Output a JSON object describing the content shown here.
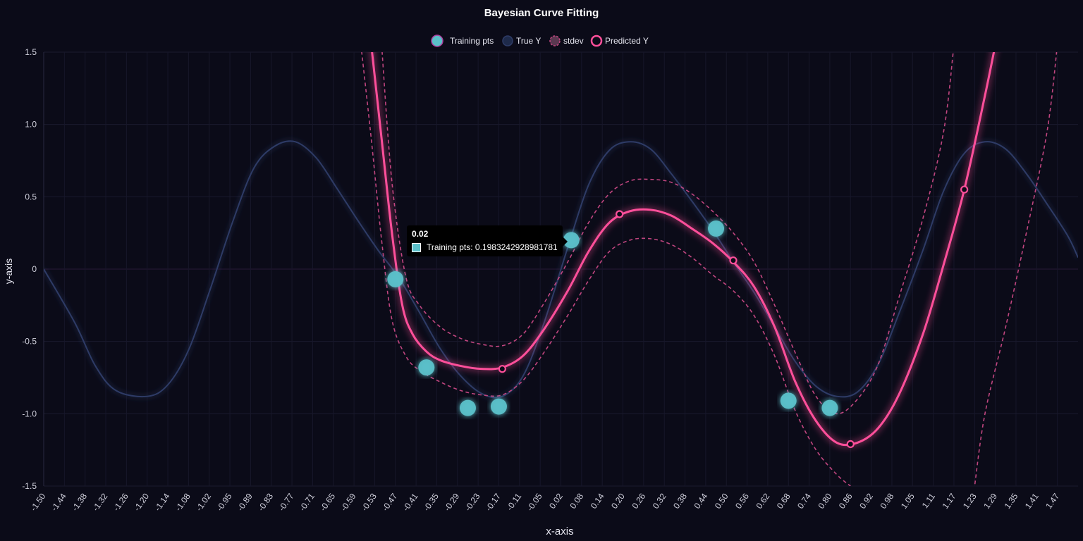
{
  "chart_data": {
    "type": "line",
    "title": "Bayesian Curve Fitting",
    "xlabel": "x-axis",
    "ylabel": "y-axis",
    "xlim": [
      -1.5,
      1.5
    ],
    "ylim": [
      -1.5,
      1.5
    ],
    "grid": true,
    "legend_position": "top-center",
    "x_ticks": [
      "-1.50",
      "-1.44",
      "-1.38",
      "-1.32",
      "-1.26",
      "-1.20",
      "-1.14",
      "-1.08",
      "-1.02",
      "-0.95",
      "-0.89",
      "-0.83",
      "-0.77",
      "-0.71",
      "-0.65",
      "-0.59",
      "-0.53",
      "-0.47",
      "-0.41",
      "-0.35",
      "-0.29",
      "-0.23",
      "-0.17",
      "-0.11",
      "-0.05",
      "0.02",
      "0.08",
      "0.14",
      "0.20",
      "0.26",
      "0.32",
      "0.38",
      "0.44",
      "0.50",
      "0.56",
      "0.62",
      "0.68",
      "0.74",
      "0.80",
      "0.86",
      "0.92",
      "0.98",
      "1.05",
      "1.11",
      "1.17",
      "1.23",
      "1.29",
      "1.35",
      "1.41",
      "1.47"
    ],
    "y_ticks": [
      {
        "value": 1.5,
        "label": "1.5"
      },
      {
        "value": 1.0,
        "label": "1.0"
      },
      {
        "value": 0.5,
        "label": "0.5"
      },
      {
        "value": 0,
        "label": "0"
      },
      {
        "value": -0.5,
        "label": "-0.5"
      },
      {
        "value": -1.0,
        "label": "-1.0"
      },
      {
        "value": -1.5,
        "label": "-1.5"
      }
    ],
    "legend": [
      {
        "label": "Training pts",
        "type": "training"
      },
      {
        "label": "True Y",
        "type": "true"
      },
      {
        "label": "stdev",
        "type": "stdev"
      },
      {
        "label": "Predicted Y",
        "type": "predicted"
      }
    ],
    "series": [
      {
        "name": "Training pts",
        "kind": "scatter",
        "color": "#5bc0c9",
        "points": [
          [
            -0.48,
            -0.07
          ],
          [
            -0.39,
            -0.68
          ],
          [
            -0.27,
            -0.96
          ],
          [
            -0.18,
            -0.95
          ],
          [
            0.03,
            0.2
          ],
          [
            0.45,
            0.28
          ],
          [
            0.66,
            -0.91
          ],
          [
            0.78,
            -0.96
          ]
        ]
      },
      {
        "name": "True Y",
        "kind": "line",
        "color": "#2e3b66",
        "points": [
          [
            -1.5,
            0
          ],
          [
            -1.41,
            -0.37
          ],
          [
            -1.35,
            -0.67
          ],
          [
            -1.29,
            -0.84
          ],
          [
            -1.2,
            -0.88
          ],
          [
            -1.14,
            -0.8
          ],
          [
            -1.08,
            -0.56
          ],
          [
            -1.02,
            -0.16
          ],
          [
            -0.95,
            0.34
          ],
          [
            -0.89,
            0.7
          ],
          [
            -0.83,
            0.85
          ],
          [
            -0.77,
            0.88
          ],
          [
            -0.71,
            0.77
          ],
          [
            -0.65,
            0.56
          ],
          [
            -0.59,
            0.34
          ],
          [
            -0.53,
            0.13
          ],
          [
            -0.47,
            -0.06
          ],
          [
            -0.41,
            -0.3
          ],
          [
            -0.35,
            -0.55
          ],
          [
            -0.29,
            -0.74
          ],
          [
            -0.23,
            -0.86
          ],
          [
            -0.17,
            -0.88
          ],
          [
            -0.11,
            -0.74
          ],
          [
            -0.05,
            -0.38
          ],
          [
            0.02,
            0.15
          ],
          [
            0.08,
            0.58
          ],
          [
            0.14,
            0.82
          ],
          [
            0.2,
            0.88
          ],
          [
            0.26,
            0.83
          ],
          [
            0.32,
            0.66
          ],
          [
            0.38,
            0.47
          ],
          [
            0.44,
            0.27
          ],
          [
            0.5,
            0.05
          ],
          [
            0.56,
            -0.16
          ],
          [
            0.62,
            -0.4
          ],
          [
            0.68,
            -0.64
          ],
          [
            0.74,
            -0.81
          ],
          [
            0.8,
            -0.88
          ],
          [
            0.86,
            -0.85
          ],
          [
            0.92,
            -0.66
          ],
          [
            0.98,
            -0.31
          ],
          [
            1.05,
            0.13
          ],
          [
            1.11,
            0.54
          ],
          [
            1.17,
            0.8
          ],
          [
            1.23,
            0.88
          ],
          [
            1.29,
            0.83
          ],
          [
            1.35,
            0.66
          ],
          [
            1.41,
            0.45
          ],
          [
            1.47,
            0.23
          ],
          [
            1.5,
            0.08
          ]
        ]
      },
      {
        "name": "Predicted Y",
        "kind": "line",
        "color": "#ff4f9a",
        "points": [
          [
            -0.55,
            1.55
          ],
          [
            -0.52,
            0.9
          ],
          [
            -0.49,
            0.25
          ],
          [
            -0.46,
            -0.25
          ],
          [
            -0.43,
            -0.45
          ],
          [
            -0.39,
            -0.57
          ],
          [
            -0.35,
            -0.63
          ],
          [
            -0.29,
            -0.67
          ],
          [
            -0.23,
            -0.69
          ],
          [
            -0.17,
            -0.68
          ],
          [
            -0.11,
            -0.6
          ],
          [
            -0.05,
            -0.42
          ],
          [
            0.02,
            -0.15
          ],
          [
            0.08,
            0.12
          ],
          [
            0.14,
            0.32
          ],
          [
            0.2,
            0.4
          ],
          [
            0.26,
            0.41
          ],
          [
            0.32,
            0.37
          ],
          [
            0.38,
            0.28
          ],
          [
            0.44,
            0.18
          ],
          [
            0.5,
            0.05
          ],
          [
            0.56,
            -0.12
          ],
          [
            0.62,
            -0.4
          ],
          [
            0.68,
            -0.78
          ],
          [
            0.74,
            -1.05
          ],
          [
            0.8,
            -1.2
          ],
          [
            0.86,
            -1.2
          ],
          [
            0.92,
            -1.1
          ],
          [
            0.98,
            -0.87
          ],
          [
            1.05,
            -0.45
          ],
          [
            1.11,
            0.03
          ],
          [
            1.17,
            0.55
          ],
          [
            1.23,
            1.2
          ],
          [
            1.26,
            1.55
          ]
        ],
        "markers": [
          [
            -0.17,
            -0.69
          ],
          [
            0.17,
            0.38
          ],
          [
            0.5,
            0.06
          ],
          [
            0.84,
            -1.21
          ],
          [
            1.17,
            0.55
          ]
        ]
      },
      {
        "name": "stdev",
        "kind": "line",
        "color": "#c0457f",
        "dashed": true,
        "upper": [
          [
            -0.52,
            1.55
          ],
          [
            -0.49,
            0.6
          ],
          [
            -0.45,
            -0.05
          ],
          [
            -0.41,
            -0.25
          ],
          [
            -0.35,
            -0.4
          ],
          [
            -0.29,
            -0.48
          ],
          [
            -0.23,
            -0.52
          ],
          [
            -0.17,
            -0.53
          ],
          [
            -0.11,
            -0.45
          ],
          [
            -0.05,
            -0.24
          ],
          [
            0.02,
            0.05
          ],
          [
            0.08,
            0.32
          ],
          [
            0.14,
            0.52
          ],
          [
            0.2,
            0.61
          ],
          [
            0.26,
            0.62
          ],
          [
            0.32,
            0.6
          ],
          [
            0.38,
            0.52
          ],
          [
            0.44,
            0.4
          ],
          [
            0.5,
            0.25
          ],
          [
            0.56,
            0.05
          ],
          [
            0.62,
            -0.25
          ],
          [
            0.68,
            -0.58
          ],
          [
            0.74,
            -0.88
          ],
          [
            0.8,
            -1.0
          ],
          [
            0.86,
            -0.9
          ],
          [
            0.92,
            -0.66
          ],
          [
            0.98,
            -0.2
          ],
          [
            1.05,
            0.35
          ],
          [
            1.11,
            0.95
          ],
          [
            1.14,
            1.55
          ]
        ],
        "lower": [
          [
            -0.58,
            1.55
          ],
          [
            -0.55,
            0.9
          ],
          [
            -0.52,
            0.2
          ],
          [
            -0.49,
            -0.35
          ],
          [
            -0.45,
            -0.6
          ],
          [
            -0.41,
            -0.7
          ],
          [
            -0.35,
            -0.78
          ],
          [
            -0.29,
            -0.84
          ],
          [
            -0.23,
            -0.87
          ],
          [
            -0.17,
            -0.87
          ],
          [
            -0.11,
            -0.77
          ],
          [
            -0.05,
            -0.58
          ],
          [
            0.02,
            -0.32
          ],
          [
            0.08,
            -0.08
          ],
          [
            0.14,
            0.12
          ],
          [
            0.2,
            0.2
          ],
          [
            0.26,
            0.21
          ],
          [
            0.32,
            0.17
          ],
          [
            0.38,
            0.08
          ],
          [
            0.44,
            -0.04
          ],
          [
            0.5,
            -0.15
          ],
          [
            0.56,
            -0.32
          ],
          [
            0.62,
            -0.6
          ],
          [
            0.68,
            -0.98
          ],
          [
            0.74,
            -1.25
          ],
          [
            0.8,
            -1.42
          ],
          [
            0.84,
            -1.5
          ]
        ],
        "upper_right": [
          [
            1.44,
            1.55
          ],
          [
            1.41,
            0.95
          ],
          [
            1.35,
            0.25
          ],
          [
            1.29,
            -0.4
          ],
          [
            1.23,
            -1.0
          ],
          [
            1.2,
            -1.5
          ]
        ]
      }
    ]
  },
  "tooltip": {
    "title": "0.02",
    "text": "Training pts: 0.1983242928981781"
  }
}
